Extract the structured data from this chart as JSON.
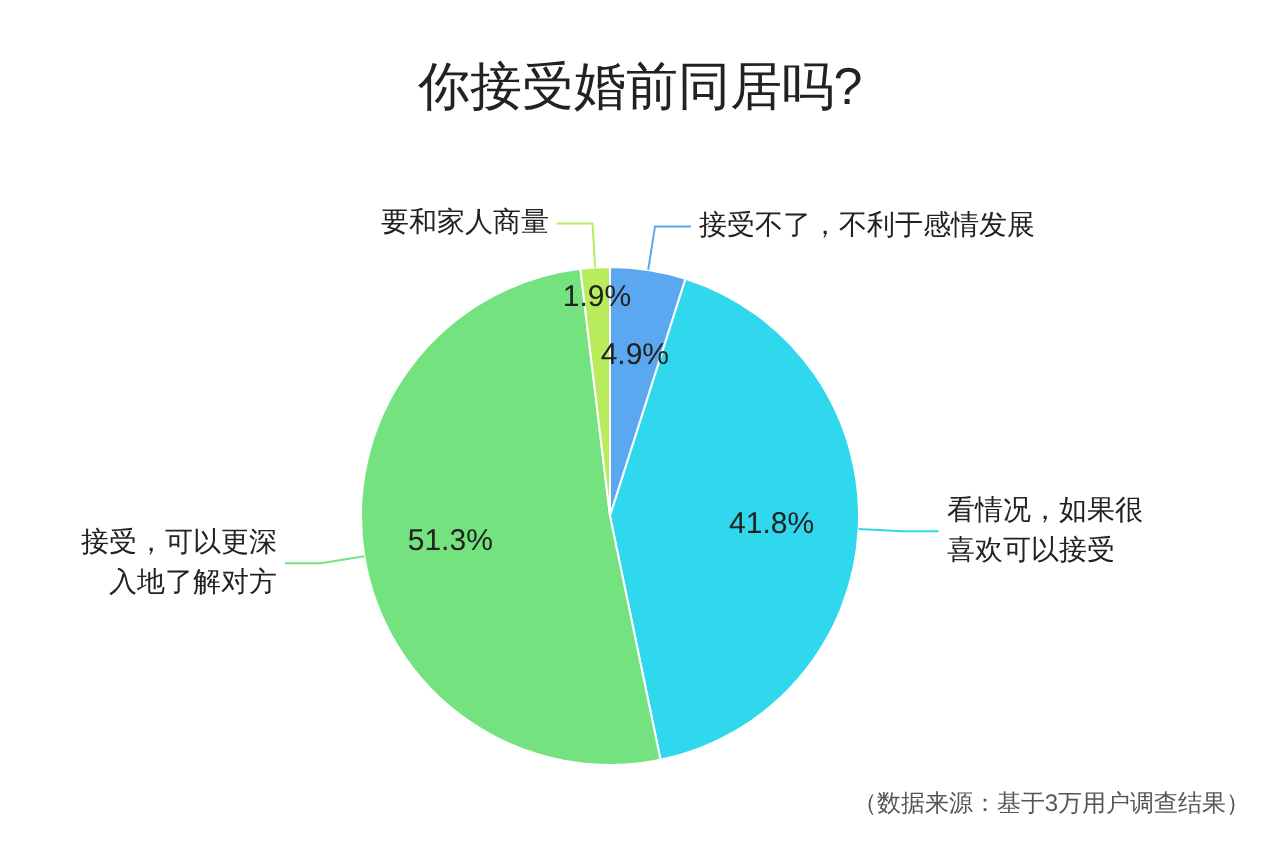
{
  "chart_data": {
    "type": "pie",
    "title": "你接受婚前同居吗?",
    "categories": [
      "接受不了，不利于感情发展",
      "看情况，如果很喜欢可以接受",
      "接受，可以更深入地了解对方",
      "要和家人商量"
    ],
    "values": [
      4.9,
      41.8,
      51.3,
      1.9
    ],
    "value_labels": [
      "4.9%",
      "41.8%",
      "51.3%",
      "1.9%"
    ],
    "colors": [
      "#5ba8f0",
      "#2fd8ed",
      "#74e27e",
      "#b9ec5c"
    ],
    "legend": false,
    "annotations": [
      "（数据来源：基于3万用户调查结果）"
    ]
  }
}
